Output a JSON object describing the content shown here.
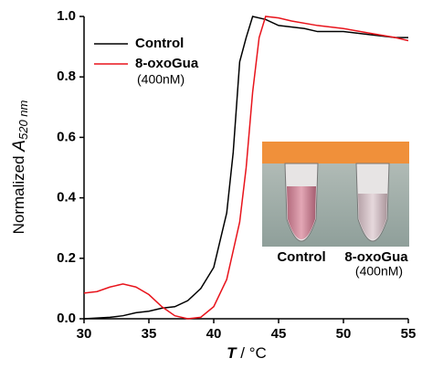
{
  "chart_data": {
    "type": "line",
    "xlabel": {
      "symbol": "T",
      "unit": " / °C"
    },
    "ylabel": {
      "text": "Normalized ",
      "symbol": "A",
      "subscript": "520 nm"
    },
    "xlim": [
      30,
      55
    ],
    "xticks": [
      30,
      35,
      40,
      45,
      50,
      55
    ],
    "ylim": [
      0,
      1.0
    ],
    "yticks": [
      {
        "value": 0,
        "label": "0.0"
      },
      0.2,
      0.4,
      0.6,
      0.8,
      {
        "value": 1,
        "label": "1.0"
      }
    ],
    "series": [
      {
        "name": "Control",
        "color": "#000000",
        "x": [
          30,
          32,
          33,
          34,
          35,
          36,
          37,
          38,
          39,
          40,
          41,
          41.5,
          42,
          42.5,
          43,
          44,
          45,
          47,
          48,
          50,
          52,
          54,
          55
        ],
        "values": [
          0,
          0.005,
          0.01,
          0.02,
          0.025,
          0.035,
          0.04,
          0.06,
          0.1,
          0.17,
          0.35,
          0.55,
          0.85,
          0.93,
          1.0,
          0.99,
          0.97,
          0.96,
          0.95,
          0.95,
          0.94,
          0.93,
          0.93
        ]
      },
      {
        "name": "8-oxoGua",
        "name_note": "(400nM)",
        "color": "#e8141c",
        "x": [
          30,
          31,
          32,
          33,
          34,
          35,
          36,
          37,
          38,
          39,
          40,
          41,
          42,
          42.5,
          43,
          43.5,
          44,
          45,
          46,
          48,
          50,
          52,
          54,
          55
        ],
        "values": [
          0.085,
          0.09,
          0.105,
          0.115,
          0.105,
          0.08,
          0.04,
          0.01,
          0,
          0.005,
          0.04,
          0.13,
          0.32,
          0.5,
          0.75,
          0.93,
          1.0,
          0.995,
          0.985,
          0.97,
          0.96,
          0.945,
          0.93,
          0.92
        ]
      }
    ],
    "inset_labels": [
      "Control",
      "8-oxoGua",
      "(400nM)"
    ]
  }
}
